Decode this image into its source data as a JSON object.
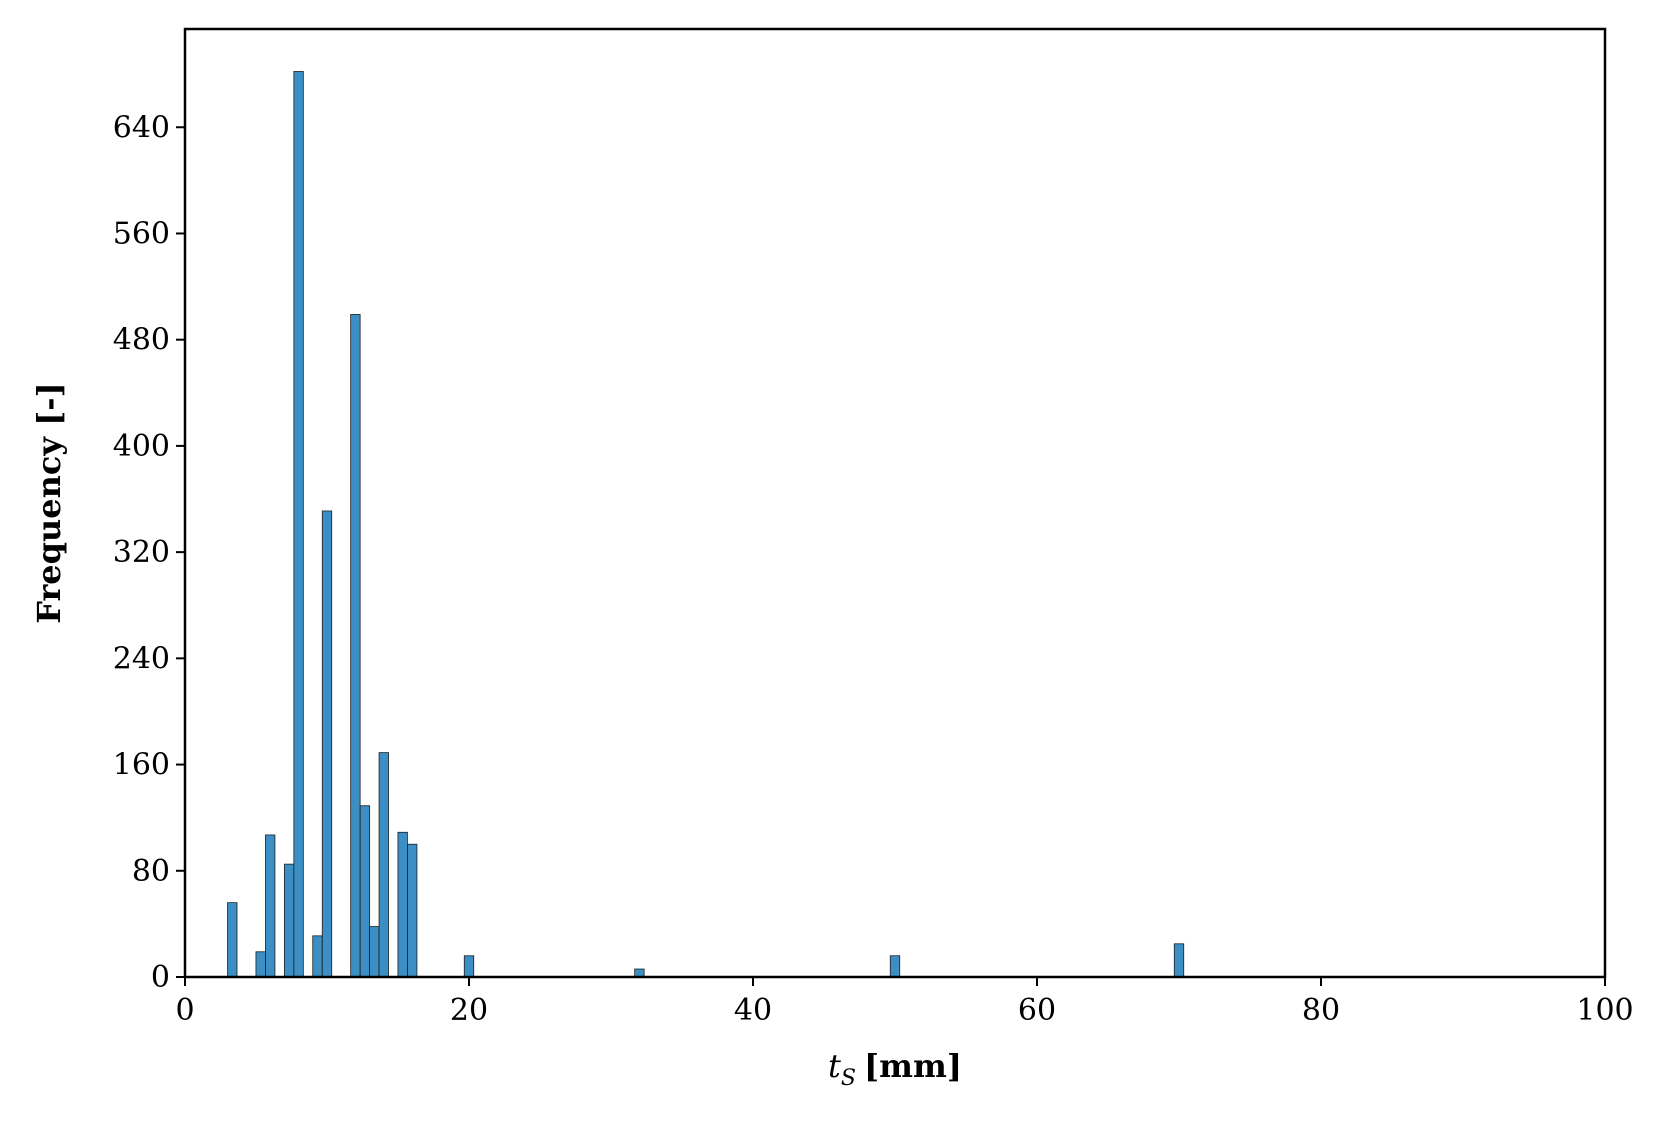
{
  "chart_data": {
    "type": "bar",
    "title": "",
    "xlabel": {
      "var": "t",
      "sub": "S",
      "unit": "[mm]"
    },
    "ylabel": "Frequency [-]",
    "xlim": [
      0,
      100
    ],
    "ylim": [
      0,
      714
    ],
    "xticks": [
      0,
      20,
      40,
      60,
      80,
      100
    ],
    "yticks": [
      0,
      80,
      160,
      240,
      320,
      400,
      480,
      560,
      640
    ],
    "bin_width": 0.667,
    "grid": false,
    "legend": "none",
    "bar_color": "#3b8fc4",
    "bar_edge_color": "#1f1f1f",
    "bars": [
      {
        "x": 3.33,
        "value": 56
      },
      {
        "x": 5.33,
        "value": 19
      },
      {
        "x": 6.0,
        "value": 107
      },
      {
        "x": 7.33,
        "value": 85
      },
      {
        "x": 8.0,
        "value": 682
      },
      {
        "x": 9.33,
        "value": 31
      },
      {
        "x": 10.0,
        "value": 351
      },
      {
        "x": 12.0,
        "value": 499
      },
      {
        "x": 12.67,
        "value": 129
      },
      {
        "x": 13.33,
        "value": 38
      },
      {
        "x": 14.0,
        "value": 169
      },
      {
        "x": 15.33,
        "value": 109
      },
      {
        "x": 16.0,
        "value": 100
      },
      {
        "x": 20.0,
        "value": 16
      },
      {
        "x": 32.0,
        "value": 6
      },
      {
        "x": 50.0,
        "value": 16
      },
      {
        "x": 70.0,
        "value": 25
      }
    ]
  }
}
